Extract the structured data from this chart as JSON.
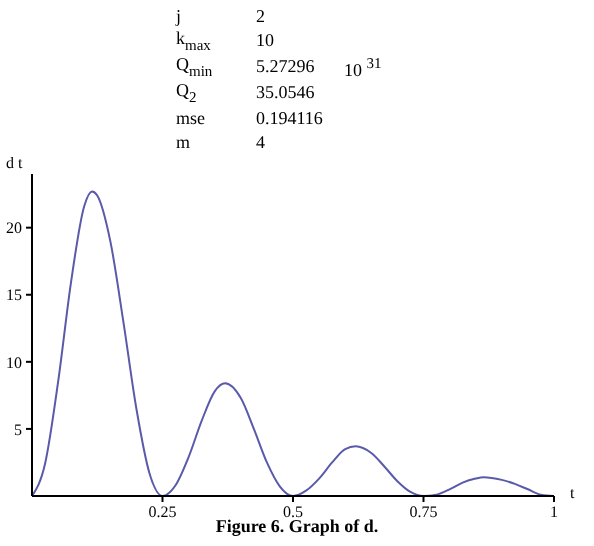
{
  "chart_data": {
    "type": "line",
    "xlabel": "t",
    "ylabel": "d t",
    "annotations": [
      "j\t2",
      "k$_{max}$\t10",
      "Q$_{min}$\t5.27296\t10 $^{31}$",
      "Q$_{2}$\t35.0546",
      "mse\t0.194116",
      "m\t4",
      "Figure 6. Graph of d."
    ],
    "x": [
      0,
      0.025,
      0.05,
      0.075,
      0.1,
      0.115,
      0.125,
      0.15,
      0.175,
      0.2,
      0.225,
      0.25,
      0.275,
      0.3,
      0.325,
      0.35,
      0.37,
      0.4,
      0.425,
      0.45,
      0.475,
      0.5,
      0.525,
      0.55,
      0.575,
      0.6,
      0.62,
      0.65,
      0.675,
      0.7,
      0.725,
      0.75,
      0.775,
      0.8,
      0.825,
      0.85,
      0.865,
      0.9,
      0.925,
      0.95,
      0.975,
      1
    ],
    "series": [
      {
        "color": "#5a5aaa",
        "values": [
          0,
          2.4,
          8.5,
          16,
          21.6,
          22.7,
          22.4,
          19,
          13,
          6.5,
          1.7,
          0,
          0.8,
          2.9,
          5.6,
          7.8,
          8.4,
          7.3,
          5,
          2.5,
          0.7,
          0,
          0.4,
          1.3,
          2.5,
          3.5,
          3.7,
          3.2,
          2.2,
          1.1,
          0.3,
          0,
          0.1,
          0.5,
          1,
          1.3,
          1.4,
          1.2,
          0.9,
          0.5,
          0.1,
          0
        ]
      }
    ],
    "xlim": [
      0,
      1
    ],
    "xticks": [
      0.25,
      0.5,
      0.75,
      1
    ],
    "ylim": [
      0,
      24
    ],
    "yticks": [
      5,
      10,
      15,
      20
    ],
    "grid": false,
    "marker": "none",
    "line_style": "solid"
  }
}
